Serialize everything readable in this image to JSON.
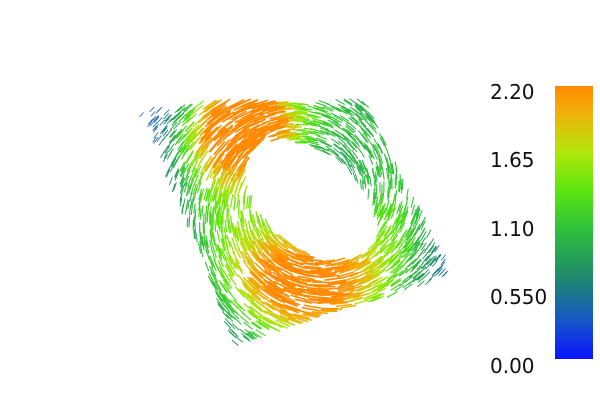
{
  "colorbar": {
    "ticks": [
      "2.20",
      "1.65",
      "1.10",
      "0.550",
      "0.00"
    ],
    "values": [
      2.2,
      1.65,
      1.1,
      0.55,
      0.0
    ],
    "range": [
      0.0,
      2.2
    ],
    "colormap": [
      "#0a14ff",
      "#1656c8",
      "#1f8a6c",
      "#2fc23a",
      "#5ee60f",
      "#b2e60b",
      "#f0b10a",
      "#ff8a00"
    ]
  },
  "colors": {
    "background": "#ffffff",
    "text": "#111111"
  }
}
